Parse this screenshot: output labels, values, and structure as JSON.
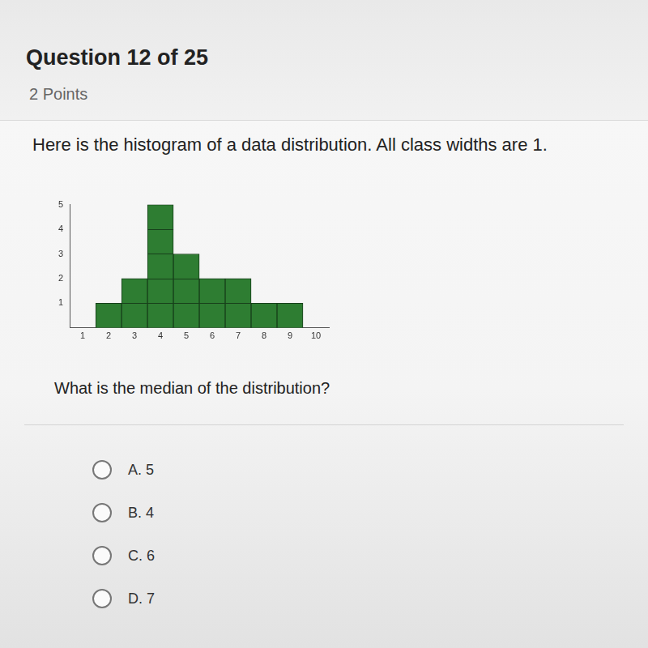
{
  "header": {
    "title": "Question 12 of 25",
    "points": "2 Points"
  },
  "prompt": "Here is the histogram of a data distribution. All class widths are 1.",
  "chart_data": {
    "type": "histogram",
    "bins": [
      1.5,
      2.5,
      3.5,
      4.5,
      5.5,
      6.5,
      7.5,
      8.5,
      9.5
    ],
    "values": [
      1,
      2,
      5,
      3,
      2,
      2,
      1,
      1
    ],
    "color": "#2e7d32",
    "xlim": [
      0.5,
      10.5
    ],
    "xticks": [
      1,
      2,
      3,
      4,
      5,
      6,
      7,
      8,
      9,
      10
    ],
    "ylim": [
      0,
      5
    ],
    "yticks": [
      1,
      2,
      3,
      4,
      5
    ],
    "grid": false
  },
  "question": "What is the median of the distribution?",
  "options": [
    "A. 5",
    "B. 4",
    "C. 6",
    "D. 7"
  ]
}
